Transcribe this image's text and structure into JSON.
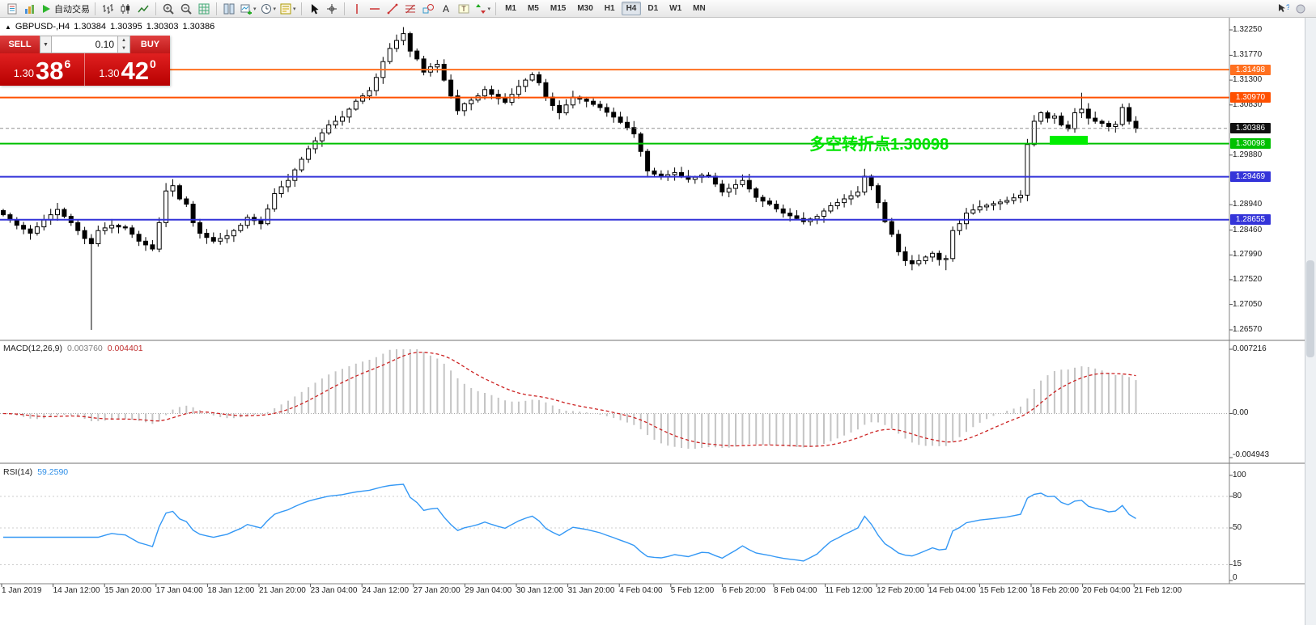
{
  "toolbar": {
    "items": [
      {
        "type": "icon",
        "name": "new-order-icon",
        "icon": "neworder"
      },
      {
        "type": "icon",
        "name": "chart-profiles-icon",
        "icon": "profiles"
      },
      {
        "type": "button",
        "name": "autotrading-button",
        "icon": "play",
        "label": "自动交易"
      },
      {
        "type": "sep"
      },
      {
        "type": "icon",
        "name": "bar-chart-icon",
        "icon": "bars"
      },
      {
        "type": "icon",
        "name": "candlestick-chart-icon",
        "icon": "candles"
      },
      {
        "type": "icon",
        "name": "line-chart-icon",
        "icon": "linechart"
      },
      {
        "type": "sep"
      },
      {
        "type": "icon",
        "name": "zoom-in-icon",
        "icon": "zoomin"
      },
      {
        "type": "icon",
        "name": "zoom-out-icon",
        "icon": "zoomout"
      },
      {
        "type": "icon",
        "name": "auto-arrange-icon",
        "icon": "grid"
      },
      {
        "type": "sep"
      },
      {
        "type": "icon",
        "name": "tile-windows-icon",
        "icon": "tile"
      },
      {
        "type": "icon",
        "name": "new-chart-icon",
        "icon": "newchart",
        "dropdown": true
      },
      {
        "type": "icon",
        "name": "periods-icon",
        "icon": "clock",
        "dropdown": true
      },
      {
        "type": "icon",
        "name": "templates-icon",
        "icon": "template",
        "dropdown": true
      },
      {
        "type": "sep"
      },
      {
        "type": "icon",
        "name": "cursor-icon",
        "icon": "cursor"
      },
      {
        "type": "icon",
        "name": "crosshair-icon",
        "icon": "crosshair"
      },
      {
        "type": "sep"
      },
      {
        "type": "icon",
        "name": "vertical-line-icon",
        "icon": "vline"
      },
      {
        "type": "icon",
        "name": "horizontal-line-icon",
        "icon": "hline"
      },
      {
        "type": "icon",
        "name": "trendline-icon",
        "icon": "trend"
      },
      {
        "type": "icon",
        "name": "fibonacci-icon",
        "icon": "fibo"
      },
      {
        "type": "icon",
        "name": "shapes-icon",
        "icon": "shapes"
      },
      {
        "type": "icon",
        "name": "text-icon",
        "icon": "textA"
      },
      {
        "type": "icon",
        "name": "text-label-icon",
        "icon": "textT"
      },
      {
        "type": "icon",
        "name": "arrow-objects-icon",
        "icon": "arrows",
        "dropdown": true
      },
      {
        "type": "sep"
      },
      {
        "type": "tf",
        "name": "tf-m1",
        "label": "M1"
      },
      {
        "type": "tf",
        "name": "tf-m5",
        "label": "M5"
      },
      {
        "type": "tf",
        "name": "tf-m15",
        "label": "M15"
      },
      {
        "type": "tf",
        "name": "tf-m30",
        "label": "M30"
      },
      {
        "type": "tf",
        "name": "tf-h1",
        "label": "H1"
      },
      {
        "type": "tf",
        "name": "tf-h4",
        "label": "H4",
        "active": true
      },
      {
        "type": "tf",
        "name": "tf-d1",
        "label": "D1"
      },
      {
        "type": "tf",
        "name": "tf-w1",
        "label": "W1"
      },
      {
        "type": "tf",
        "name": "tf-mn",
        "label": "MN"
      }
    ],
    "right_items": [
      {
        "type": "icon",
        "name": "quick-help-icon",
        "icon": "helpcursor"
      },
      {
        "type": "icon",
        "name": "status-indicator-icon",
        "icon": "circle"
      }
    ]
  },
  "quote_header": {
    "symbol": "GBPUSD-,H4",
    "open": "1.30384",
    "high": "1.30395",
    "low": "1.30303",
    "close": "1.30386"
  },
  "trade_panel": {
    "sell_label": "SELL",
    "buy_label": "BUY",
    "volume": "0.10",
    "sell_price_small": "1.30",
    "sell_price_big": "38",
    "sell_price_sup": "6",
    "buy_price_small": "1.30",
    "buy_price_big": "42",
    "buy_price_sup": "0"
  },
  "annotation": {
    "text": "多空转折点1.30098",
    "color": "#00e400"
  },
  "macd_panel": {
    "title": "MACD(12,26,9)",
    "value1": "0.003760",
    "value2": "0.004401",
    "axis_top": "0.007216",
    "axis_zero": "0.00",
    "axis_bottom": "-0.004943"
  },
  "rsi_panel": {
    "title": "RSI(14)",
    "value": "59.2590",
    "axis": [
      "100",
      "80",
      "50",
      "15",
      "0"
    ]
  },
  "time_axis": {
    "labels": [
      "1 Jan 2019",
      "14 Jan 12:00",
      "15 Jan 20:00",
      "17 Jan 04:00",
      "18 Jan 12:00",
      "21 Jan 20:00",
      "23 Jan 04:00",
      "24 Jan 12:00",
      "27 Jan 20:00",
      "29 Jan 04:00",
      "30 Jan 12:00",
      "31 Jan 20:00",
      "4 Feb 04:00",
      "5 Feb 12:00",
      "6 Feb 20:00",
      "8 Feb 04:00",
      "11 Feb 12:00",
      "12 Feb 20:00",
      "14 Feb 04:00",
      "15 Feb 12:00",
      "18 Feb 20:00",
      "20 Feb 04:00",
      "21 Feb 12:00"
    ]
  },
  "chart_data": {
    "type": "candlestick",
    "symbol": "GBPUSD-",
    "timeframe": "H4",
    "price_range": {
      "top": 1.3225,
      "bottom": 1.2657
    },
    "closes": [
      1.2875,
      1.2865,
      1.2855,
      1.2848,
      1.284,
      1.2852,
      1.2865,
      1.2875,
      1.2885,
      1.2872,
      1.286,
      1.2845,
      1.283,
      1.282,
      1.2845,
      1.285,
      1.2855,
      1.2852,
      1.285,
      1.2838,
      1.2825,
      1.2818,
      1.281,
      1.286,
      1.292,
      1.293,
      1.2905,
      1.2895,
      1.286,
      1.284,
      1.2832,
      1.2825,
      1.283,
      1.2835,
      1.2845,
      1.2855,
      1.287,
      1.2864,
      1.2858,
      1.2886,
      1.2915,
      1.2928,
      1.294,
      1.296,
      1.298,
      1.3,
      1.3015,
      1.303,
      1.3045,
      1.3052,
      1.306,
      1.3075,
      1.309,
      1.31,
      1.311,
      1.3135,
      1.3165,
      1.319,
      1.3205,
      1.3218,
      1.3185,
      1.317,
      1.3145,
      1.3155,
      1.316,
      1.313,
      1.31,
      1.3072,
      1.3085,
      1.3092,
      1.31,
      1.3112,
      1.3103,
      1.3095,
      1.3088,
      1.3103,
      1.3118,
      1.313,
      1.314,
      1.3125,
      1.3098,
      1.3082,
      1.3068,
      1.3083,
      1.3098,
      1.3094,
      1.309,
      1.3084,
      1.3078,
      1.3069,
      1.306,
      1.305,
      1.304,
      1.3028,
      1.2995,
      1.2958,
      1.2952,
      1.2948,
      1.2951,
      1.2955,
      1.2948,
      1.2942,
      1.2946,
      1.295,
      1.2948,
      1.2933,
      1.2918,
      1.2925,
      1.2932,
      1.294,
      1.2924,
      1.2908,
      1.2901,
      1.2895,
      1.2886,
      1.2878,
      1.2873,
      1.2868,
      1.2862,
      1.2867,
      1.2872,
      1.2882,
      1.2892,
      1.2898,
      1.2905,
      1.2911,
      1.2918,
      1.2948,
      1.293,
      1.2898,
      1.2862,
      1.2838,
      1.2805,
      1.2788,
      1.2782,
      1.2788,
      1.2795,
      1.2802,
      1.279,
      1.2792,
      1.2845,
      1.2858,
      1.2878,
      1.2884,
      1.289,
      1.2893,
      1.2896,
      1.2899,
      1.2902,
      1.2907,
      1.2912,
      1.3008,
      1.3052,
      1.3068,
      1.3058,
      1.3062,
      1.3045,
      1.3038,
      1.3068,
      1.3075,
      1.3058,
      1.3052,
      1.3048,
      1.3042,
      1.3046,
      1.3078,
      1.3052,
      1.30386
    ],
    "wick_overrides": {
      "13": {
        "low": 1.2657
      },
      "24": {
        "high": 1.2935
      },
      "127": {
        "high": 1.2962
      },
      "139": {
        "low": 1.277
      },
      "159": {
        "high": 1.3106
      }
    },
    "hlines": [
      {
        "price": 1.31498,
        "color": "#ff7020",
        "label": "1.31498"
      },
      {
        "price": 1.3097,
        "color": "#ff5000",
        "label": "1.30970"
      },
      {
        "price": 1.30386,
        "color": "#101010",
        "label": "1.30386",
        "style": "current"
      },
      {
        "price": 1.30098,
        "color": "#00c000",
        "label": "1.30098"
      },
      {
        "price": 1.29469,
        "color": "#3434d9",
        "label": "1.29469"
      },
      {
        "price": 1.28655,
        "color": "#3434d9",
        "label": "1.28655"
      }
    ],
    "y_ticks": [
      "1.32250",
      "1.31770",
      "1.31300",
      "1.30830",
      "1.29880",
      "1.28940",
      "1.28460",
      "1.27990",
      "1.27520",
      "1.27050",
      "1.26570"
    ],
    "highlight_box": {
      "price": 1.30098
    },
    "indicators": [
      {
        "name": "MACD",
        "params": [
          12,
          26,
          9
        ],
        "values": [
          0.00376,
          0.004401
        ],
        "axis": [
          0.007216,
          0.0,
          -0.004943
        ]
      },
      {
        "name": "RSI",
        "params": [
          14
        ],
        "value": 59.259,
        "levels": [
          100,
          80,
          50,
          15,
          0
        ]
      }
    ]
  }
}
